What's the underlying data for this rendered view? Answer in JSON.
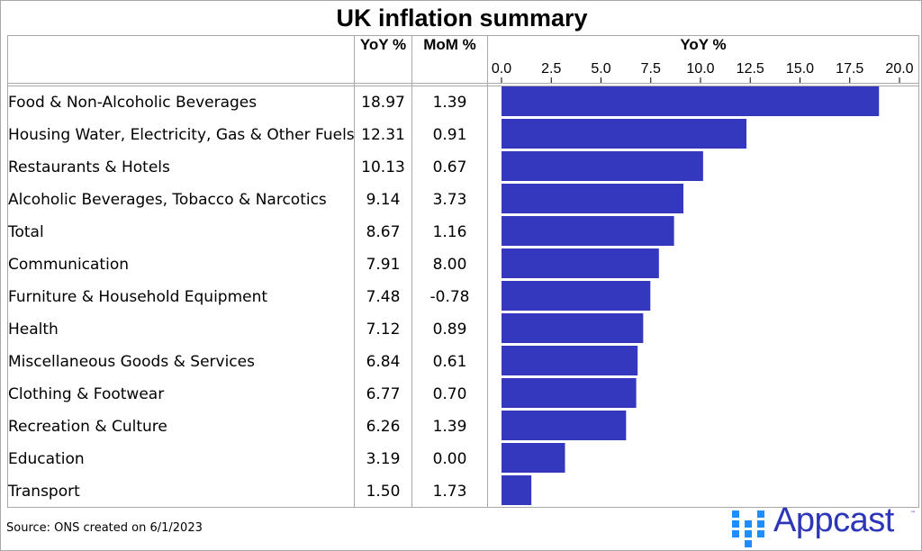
{
  "chart_data": {
    "type": "bar",
    "orientation": "horizontal",
    "title": "UK inflation summary",
    "columns": [
      "",
      "YoY %",
      "MoM %"
    ],
    "chart_header": "YoY %",
    "categories": [
      "Food & Non-Alcoholic Beverages",
      "Housing Water, Electricity, Gas & Other Fuels",
      "Restaurants & Hotels",
      "Alcoholic Beverages, Tobacco & Narcotics",
      "Total",
      "Communication",
      "Furniture & Household Equipment",
      "Health",
      "Miscellaneous Goods & Services",
      "Clothing & Footwear",
      "Recreation & Culture",
      "Education",
      "Transport"
    ],
    "yoy": [
      "18.97",
      "12.31",
      "10.13",
      "9.14",
      "8.67",
      "7.91",
      "7.48",
      "7.12",
      "6.84",
      "6.77",
      "6.26",
      "3.19",
      "1.50"
    ],
    "mom": [
      "1.39",
      "0.91",
      "0.67",
      "3.73",
      "1.16",
      "8.00",
      "-0.78",
      "0.89",
      "0.61",
      "0.70",
      "1.39",
      "0.00",
      "1.73"
    ],
    "values": [
      18.97,
      12.31,
      10.13,
      9.14,
      8.67,
      7.91,
      7.48,
      7.12,
      6.84,
      6.77,
      6.26,
      3.19,
      1.5
    ],
    "xlim": [
      0,
      20
    ],
    "ticks": [
      "0.0",
      "2.5",
      "5.0",
      "7.5",
      "10.0",
      "12.5",
      "15.0",
      "17.5",
      "20.0"
    ],
    "bar_color": "#3338bf",
    "grid": false
  },
  "footer": {
    "source": "Source: ONS created on 6/1/2023",
    "logo": "Appcast",
    "tm": "™"
  },
  "colors": {
    "logo_dots": "#1f8cff",
    "logo_text": "#2e36b8"
  }
}
